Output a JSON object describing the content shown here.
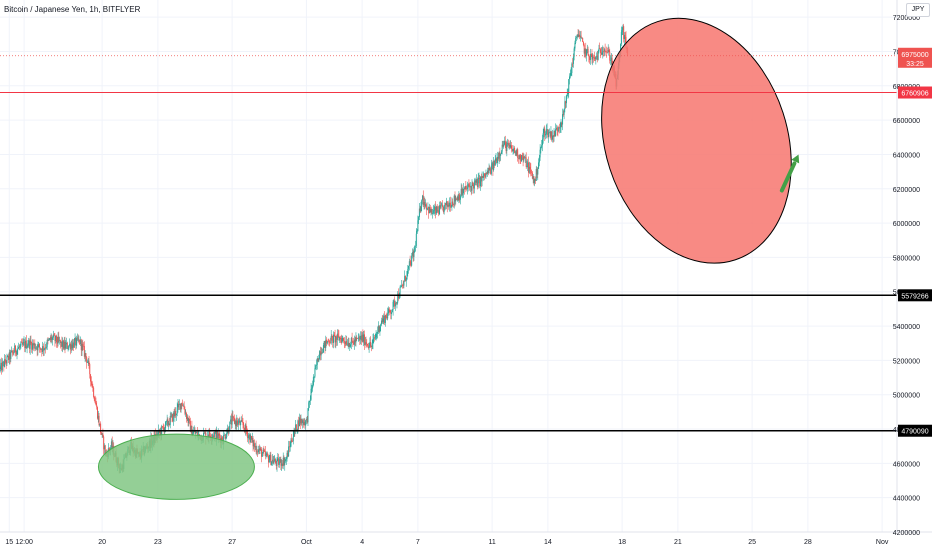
{
  "header": {
    "title": "Bitcoin / Japanese Yen, 1h, BITFLYER",
    "currency": "JPY"
  },
  "chart_data": {
    "type": "candlestick",
    "title": "Bitcoin / Japanese Yen, 1h, BITFLYER",
    "ylabel": "JPY",
    "ylim": [
      4200000,
      7300000
    ],
    "y_ticks": [
      4200000,
      4400000,
      4600000,
      4800000,
      5000000,
      5200000,
      5400000,
      5600000,
      5800000,
      6000000,
      6200000,
      6400000,
      6600000,
      6800000,
      7000000,
      7200000
    ],
    "x_ticks": [
      {
        "label": "15",
        "day": 15
      },
      {
        "label": "12:00",
        "day": 15.8
      },
      {
        "label": "20",
        "day": 20
      },
      {
        "label": "23",
        "day": 23
      },
      {
        "label": "27",
        "day": 27
      },
      {
        "label": "Oct",
        "day": 31
      },
      {
        "label": "4",
        "day": 34
      },
      {
        "label": "7",
        "day": 37
      },
      {
        "label": "11",
        "day": 41
      },
      {
        "label": "14",
        "day": 44
      },
      {
        "label": "18",
        "day": 48
      },
      {
        "label": "21",
        "day": 51
      },
      {
        "label": "25",
        "day": 55
      },
      {
        "label": "28",
        "day": 58
      },
      {
        "label": "Nov",
        "day": 62
      }
    ],
    "xlim": [
      14.5,
      62.8
    ],
    "price_path": [
      [
        14.5,
        5150000
      ],
      [
        15.3,
        5260000
      ],
      [
        16.0,
        5300000
      ],
      [
        16.8,
        5270000
      ],
      [
        17.3,
        5330000
      ],
      [
        18.0,
        5280000
      ],
      [
        18.8,
        5310000
      ],
      [
        19.2,
        5200000
      ],
      [
        19.6,
        4980000
      ],
      [
        19.9,
        4800000
      ],
      [
        20.2,
        4650000
      ],
      [
        20.5,
        4700000
      ],
      [
        21.0,
        4560000
      ],
      [
        21.5,
        4700000
      ],
      [
        22.0,
        4640000
      ],
      [
        22.6,
        4720000
      ],
      [
        23.2,
        4790000
      ],
      [
        23.8,
        4870000
      ],
      [
        24.3,
        4960000
      ],
      [
        24.8,
        4790000
      ],
      [
        25.2,
        4760000
      ],
      [
        26.0,
        4770000
      ],
      [
        26.5,
        4740000
      ],
      [
        27.0,
        4850000
      ],
      [
        27.6,
        4820000
      ],
      [
        28.2,
        4700000
      ],
      [
        28.8,
        4640000
      ],
      [
        29.4,
        4600000
      ],
      [
        29.9,
        4620000
      ],
      [
        30.2,
        4740000
      ],
      [
        30.6,
        4850000
      ],
      [
        31.0,
        4840000
      ],
      [
        31.3,
        5050000
      ],
      [
        31.7,
        5250000
      ],
      [
        32.2,
        5320000
      ],
      [
        32.8,
        5330000
      ],
      [
        33.4,
        5300000
      ],
      [
        34.0,
        5330000
      ],
      [
        34.5,
        5280000
      ],
      [
        35.0,
        5420000
      ],
      [
        35.6,
        5500000
      ],
      [
        36.2,
        5640000
      ],
      [
        36.8,
        5830000
      ],
      [
        37.2,
        6150000
      ],
      [
        37.7,
        6060000
      ],
      [
        38.3,
        6080000
      ],
      [
        39.0,
        6140000
      ],
      [
        39.6,
        6200000
      ],
      [
        40.3,
        6240000
      ],
      [
        41.0,
        6320000
      ],
      [
        41.6,
        6460000
      ],
      [
        42.2,
        6420000
      ],
      [
        42.8,
        6360000
      ],
      [
        43.3,
        6240000
      ],
      [
        43.8,
        6540000
      ],
      [
        44.3,
        6510000
      ],
      [
        44.8,
        6610000
      ],
      [
        45.2,
        6860000
      ],
      [
        45.6,
        7120000
      ],
      [
        46.0,
        7000000
      ],
      [
        46.5,
        6950000
      ],
      [
        47.0,
        7030000
      ],
      [
        47.4,
        6960000
      ],
      [
        47.7,
        6800000
      ],
      [
        48.0,
        7140000
      ],
      [
        48.3,
        6990000
      ]
    ],
    "horizontal_lines": [
      {
        "value": 6760906,
        "label": "6760906",
        "color": "#f23645",
        "width": 1
      },
      {
        "value": 5579266,
        "label": "5579266",
        "color": "#000000",
        "width": 1.5
      },
      {
        "value": 4790090,
        "label": "4790090",
        "color": "#000000",
        "width": 1.5
      }
    ],
    "last_price": {
      "value": 6975000,
      "label": "6975000",
      "countdown": "33:25",
      "color": "#ef5350"
    },
    "annotations": [
      {
        "type": "ellipse",
        "color": "#4caf50",
        "fill": "#81c784",
        "day_center": 24.0,
        "price_center": 4580000,
        "day_radius": 4.2,
        "price_radius": 190000
      },
      {
        "type": "ellipse",
        "color": "#000000",
        "fill": "#f7756f",
        "day_center": 52.0,
        "price_center": 6480000,
        "day_radius": 4.9,
        "price_radius": 730000,
        "rotation": -18
      },
      {
        "type": "arrow",
        "color": "#43a047",
        "from_day": 56.6,
        "from_price": 6190000,
        "to_day": 57.5,
        "to_price": 6400000
      }
    ],
    "colors": {
      "up": "#26a69a",
      "down": "#ef5350",
      "grid": "#f0f3fa",
      "axis_text": "#131722"
    }
  }
}
